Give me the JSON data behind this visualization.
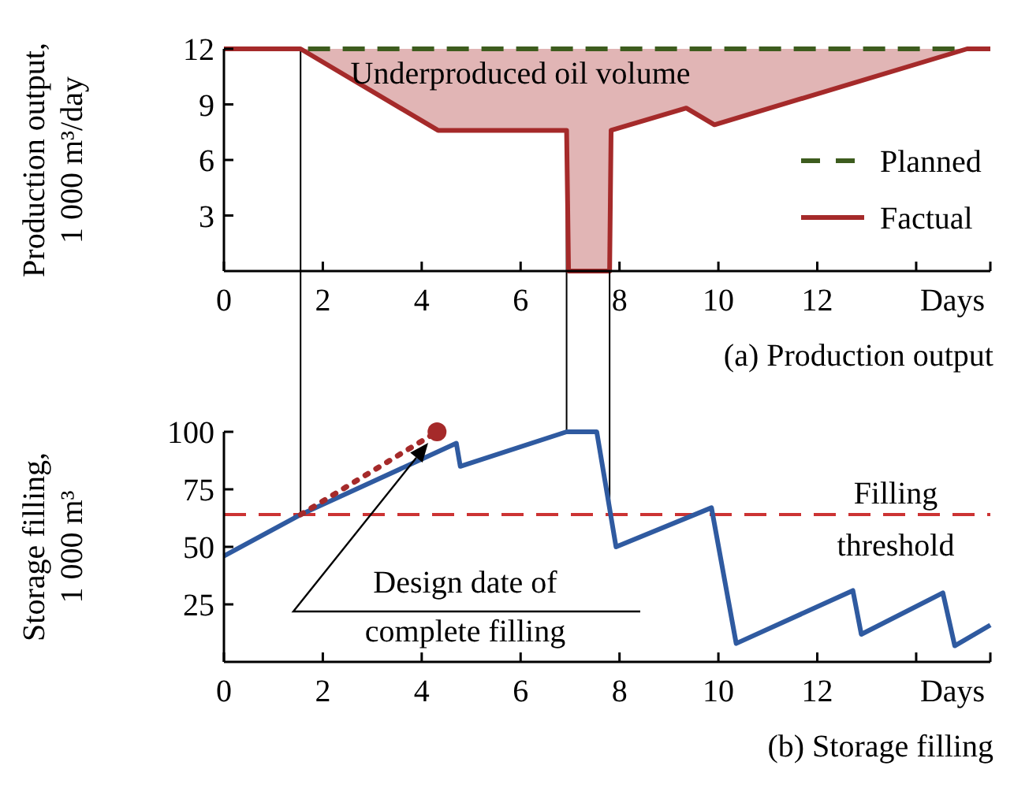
{
  "chart_data": [
    {
      "type": "line",
      "title": "(a) Production output",
      "ylabel": "Production output, 1 000 m³/day",
      "xlabel": "Days",
      "xlim": [
        0,
        15.5
      ],
      "xticks": [
        0,
        2,
        4,
        6,
        8,
        10,
        12,
        {
          "value": 14,
          "label": null
        }
      ],
      "ylim": [
        0,
        12
      ],
      "yticks": [
        3,
        6,
        9,
        12
      ],
      "grid": false,
      "legend": "bottom right",
      "annotations": [
        "Underproduced oil volume"
      ],
      "ref_lines": [
        {
          "axis": "x",
          "value": 1.55,
          "color": "#000000"
        },
        {
          "axis": "x",
          "value": 6.93,
          "color": "#000000"
        }
      ],
      "series": [
        {
          "name": "Planned",
          "color": "#3d5c1e",
          "line_style": "dashed",
          "x": [
            1.7,
            14.9
          ],
          "values": [
            12,
            12
          ]
        },
        {
          "name": "Factual",
          "color": "#a52a2a",
          "line_style": "solid",
          "x": [
            0,
            1.55,
            4.33,
            6.93,
            6.97,
            7.8,
            7.83,
            9.35,
            9.92,
            15.03,
            15.5
          ],
          "values": [
            12,
            12,
            7.6,
            7.6,
            0,
            0,
            7.6,
            8.8,
            7.9,
            12,
            12
          ],
          "lower": [
            12,
            12,
            7.6,
            7.6,
            0,
            0,
            7.6,
            8.8,
            7.9,
            12,
            12
          ],
          "upper": [
            12,
            12,
            12,
            12,
            12,
            12,
            12,
            12,
            12,
            12,
            12
          ]
        }
      ]
    },
    {
      "type": "line",
      "title": "(b) Storage filling",
      "ylabel": "Storage filling, 1 000 m³",
      "xlabel": "Days",
      "xlim": [
        0,
        15.5
      ],
      "xticks": [
        0,
        2,
        4,
        6,
        8,
        10,
        12,
        {
          "value": 14,
          "label": null
        }
      ],
      "ylim": [
        0,
        100
      ],
      "yticks": [
        25,
        50,
        75,
        100
      ],
      "grid": false,
      "legend": false,
      "annotations": [
        "Design date of complete filling"
      ],
      "ref_lines": [
        {
          "axis": "y",
          "value": 64,
          "label": "Filling threshold",
          "color": "#cc3333",
          "line_style": "dashed"
        },
        {
          "axis": "x",
          "value": 7.8,
          "color": "#000000"
        }
      ],
      "series": [
        {
          "color": "#2f5aa0",
          "line_style": "solid",
          "x": [
            0,
            1.55,
            4.7,
            4.78,
            6.93,
            7.54,
            7.93,
            9.86,
            10.36,
            12.72,
            12.89,
            14.54,
            14.78,
            15.5
          ],
          "values": [
            46,
            64,
            95,
            85,
            100,
            100,
            50,
            67,
            8,
            31,
            12,
            30,
            7,
            16
          ]
        },
        {
          "color": "#a52a2a",
          "line_style": "dotted",
          "x": [
            1.55,
            4.31
          ],
          "values": [
            64,
            100
          ]
        },
        {
          "type": "scatter",
          "color": "#a52a2a",
          "marker": "circle",
          "x": [
            4.31
          ],
          "values": [
            100
          ]
        }
      ]
    }
  ]
}
